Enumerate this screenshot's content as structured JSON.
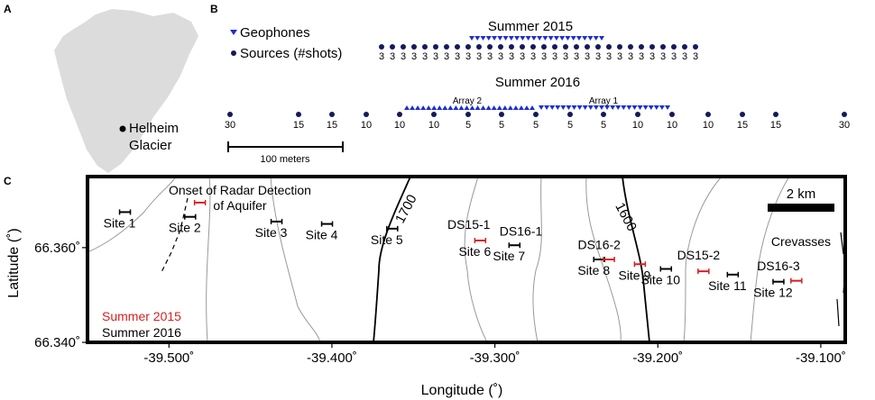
{
  "panels": {
    "a": "A",
    "b": "B",
    "c": "C"
  },
  "panel_a": {
    "site_label_line1": "Helheim",
    "site_label_line2": "Glacier"
  },
  "panel_b": {
    "legend": {
      "geophones": "Geophones",
      "sources": "Sources (#shots)"
    },
    "summer2015": {
      "title": "Summer 2015",
      "shots": [
        "3",
        "3",
        "3",
        "3",
        "3",
        "3",
        "3",
        "3",
        "3",
        "3",
        "3",
        "3",
        "3",
        "3",
        "3",
        "3",
        "3",
        "3",
        "3",
        "3",
        "3",
        "3",
        "3",
        "3",
        "3",
        "3",
        "3",
        "3",
        "3",
        "3"
      ],
      "geophone_count": 24
    },
    "summer2016": {
      "title": "Summer 2016",
      "array2_label": "Array 2",
      "array1_label": "Array 1",
      "shots": [
        "30",
        "15",
        "15",
        "10",
        "10",
        "10",
        "5",
        "5",
        "5",
        "5",
        "5",
        "10",
        "10",
        "10",
        "15",
        "15",
        "30"
      ],
      "geophone_count_array2": 24,
      "geophone_count_array1": 24
    },
    "scale_bar": "100 meters"
  },
  "panel_c": {
    "scale": "2 km",
    "contours": [
      "1700",
      "1600"
    ],
    "annotation_line1": "Onset of Radar Detection",
    "annotation_line2": "of Aquifer",
    "crevasses": "Crevasses",
    "legend_2015": "Summer 2015",
    "legend_2016": "Summer 2016",
    "colors": {
      "summer2015": "#d62020",
      "summer2016": "#000000",
      "geophone": "#1f2ecc",
      "source": "#141a5a",
      "contour": "#888888"
    }
  },
  "chart_data": {
    "type": "scatter",
    "xlabel": "Longitude (˚)",
    "ylabel": "Latitude (˚)",
    "xlim": [
      -39.55,
      -39.085
    ],
    "ylim": [
      66.34,
      66.375
    ],
    "xticks": [
      "-39.500˚",
      "-39.400˚",
      "-39.300˚",
      "-39.200˚",
      "-39.100˚"
    ],
    "yticks": [
      "66.360˚",
      "66.340˚"
    ],
    "series": [
      {
        "name": "Summer 2016",
        "points": [
          {
            "label": "Site 1",
            "x": -39.527,
            "y": 66.3675
          },
          {
            "label": "Site 2",
            "x": -39.487,
            "y": 66.3665
          },
          {
            "label": "Site 3",
            "x": -39.434,
            "y": 66.3655
          },
          {
            "label": "Site 4",
            "x": -39.403,
            "y": 66.365
          },
          {
            "label": "Site 5",
            "x": -39.363,
            "y": 66.364
          },
          {
            "label": "Site 7",
            "x": -39.288,
            "y": 66.3605
          },
          {
            "label": "Site 8",
            "x": -39.236,
            "y": 66.3575
          },
          {
            "label": "Site 10",
            "x": -39.195,
            "y": 66.3555
          },
          {
            "label": "Site 11",
            "x": -39.154,
            "y": 66.3543
          },
          {
            "label": "Site 12",
            "x": -39.126,
            "y": 66.3528
          }
        ]
      },
      {
        "name": "Summer 2015",
        "points": [
          {
            "label": "",
            "x": -39.481,
            "y": 66.3695
          },
          {
            "label": "Site 6",
            "x": -39.309,
            "y": 66.3615
          },
          {
            "label": "",
            "x": -39.23,
            "y": 66.3575
          },
          {
            "label": "Site 9",
            "x": -39.211,
            "y": 66.3565
          },
          {
            "label": "",
            "x": -39.172,
            "y": 66.355
          },
          {
            "label": "",
            "x": -39.115,
            "y": 66.353
          }
        ]
      }
    ],
    "point_labels": [
      {
        "text": "DS15-1",
        "x": -39.316,
        "y": 66.364
      },
      {
        "text": "DS16-1",
        "x": -39.284,
        "y": 66.3625
      },
      {
        "text": "DS16-2",
        "x": -39.236,
        "y": 66.3597
      },
      {
        "text": "DS15-2",
        "x": -39.175,
        "y": 66.3575
      },
      {
        "text": "DS16-3",
        "x": -39.126,
        "y": 66.3552
      }
    ]
  }
}
